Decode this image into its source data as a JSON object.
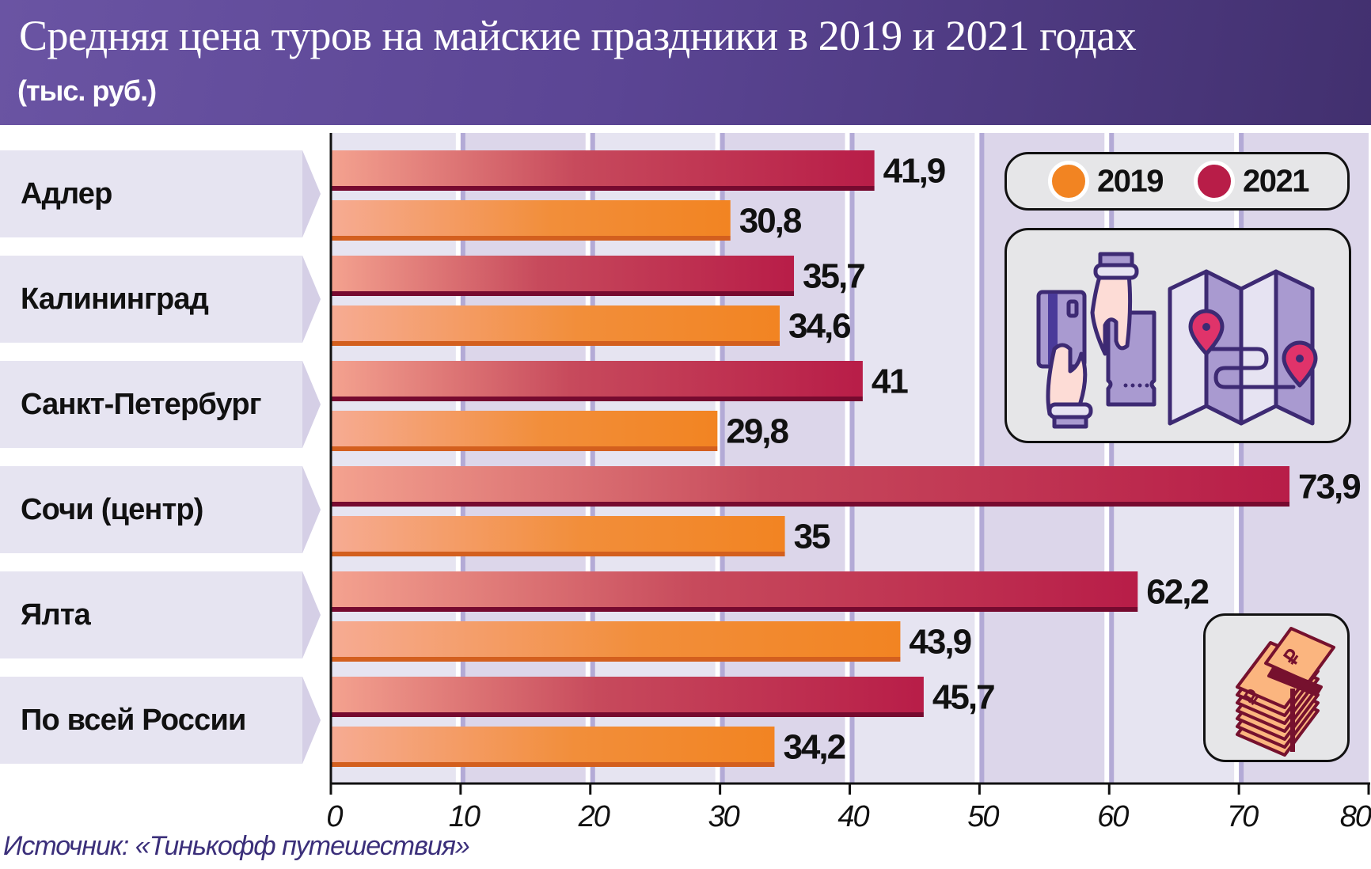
{
  "header": {
    "title": "Средняя цена туров на майские праздники в 2019 и 2021 годах",
    "subtitle": "(тыс. руб.)"
  },
  "legend": {
    "items": [
      {
        "label": "2019",
        "color": "#f28422"
      },
      {
        "label": "2021",
        "color": "#b81d48"
      }
    ]
  },
  "icons": {
    "illustration": [
      "payment-hands-icon",
      "map-route-icon"
    ],
    "money": "ruble-banknotes-icon"
  },
  "source": "Источник: «Тинькофф путешествия»",
  "colors": {
    "header_start": "#6a54a3",
    "header_end": "#42306f",
    "bar_2019": "#f28422",
    "bar_2019_edge": "#d35f1e",
    "bar_2021": "#b81d48",
    "bar_2021_edge": "#760a2f",
    "bar_gradient_start": "#f6ab93",
    "band_light": "#e6e4f1",
    "band_dark": "#dcd6ea",
    "grid": "#b3aad6"
  },
  "chart_data": {
    "type": "bar",
    "orientation": "horizontal",
    "title": "Средняя цена туров на майские праздники в 2019 и 2021 годах",
    "subtitle": "(тыс. руб.)",
    "xlabel": "",
    "ylabel": "",
    "categories": [
      "Адлер",
      "Калининград",
      "Санкт-Петербург",
      "Сочи (центр)",
      "Ялта",
      "По всей России"
    ],
    "series": [
      {
        "name": "2021",
        "values": [
          41.9,
          35.7,
          41,
          73.9,
          62.2,
          45.7
        ],
        "labels": [
          "41,9",
          "35,7",
          "41",
          "73,9",
          "62,2",
          "45,7"
        ]
      },
      {
        "name": "2019",
        "values": [
          30.8,
          34.6,
          29.8,
          35,
          43.9,
          34.2
        ],
        "labels": [
          "30,8",
          "34,6",
          "29,8",
          "35",
          "43,9",
          "34,2"
        ]
      }
    ],
    "xlim": [
      0,
      80
    ],
    "xticks": [
      0,
      10,
      20,
      30,
      40,
      50,
      60,
      70,
      80
    ],
    "xtick_labels": [
      "0",
      "10",
      "20",
      "30",
      "40",
      "50",
      "60",
      "70",
      "80"
    ],
    "grid": true,
    "legend_position": "top-right"
  }
}
